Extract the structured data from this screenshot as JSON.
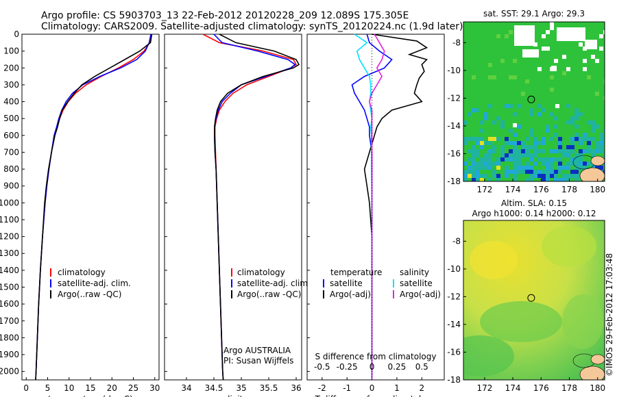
{
  "header": {
    "line1": "Argo profile: CS 5903703_13 22-Feb-2012 20120228_209 12.089S 175.305E",
    "line2": "Climatology: CARS2009. Satellite-adjusted climatology: synTS_20120224.nc (1.9d later)"
  },
  "colors": {
    "climatology": "#ff0000",
    "satellite": "#0000ff",
    "argo": "#000000",
    "salinity_satellite": "#00e0ff",
    "salinity_argo": "#e020e0",
    "land": "#f5c89a"
  },
  "chart_data": [
    {
      "type": "line",
      "panel": "temperature",
      "xlabel": "temperature (deg C)",
      "ylabel": "",
      "xlim": [
        -1,
        31
      ],
      "ylim": [
        2050,
        0
      ],
      "xticks": [
        0,
        5,
        10,
        15,
        20,
        25,
        30
      ],
      "yticks": [
        0,
        100,
        200,
        300,
        400,
        500,
        600,
        700,
        800,
        900,
        1000,
        1100,
        1200,
        1300,
        1400,
        1500,
        1600,
        1700,
        1800,
        1900,
        2000
      ],
      "legend": [
        "climatology",
        "satellite-adj. clim.",
        "Argo(..raw -QC)"
      ],
      "series": [
        {
          "name": "climatology",
          "color": "#ff0000",
          "depth": [
            0,
            50,
            100,
            150,
            200,
            250,
            300,
            350,
            400,
            450,
            500,
            550,
            600,
            700,
            800,
            900,
            1000,
            1200,
            1400,
            1600,
            1800,
            2000,
            2050
          ],
          "values": [
            29.3,
            28.8,
            27.5,
            25.0,
            21.5,
            17.5,
            14.0,
            11.5,
            9.8,
            8.6,
            7.8,
            7.2,
            6.6,
            5.9,
            5.3,
            4.8,
            4.4,
            3.8,
            3.3,
            2.9,
            2.6,
            2.3,
            2.2
          ]
        },
        {
          "name": "satellite-adj. clim.",
          "color": "#0000ff",
          "depth": [
            0,
            50,
            100,
            150,
            200,
            250,
            300,
            350,
            400,
            450,
            500,
            550,
            600,
            700,
            800,
            900,
            1000,
            1200,
            1400,
            1600,
            1800,
            2000,
            2050
          ],
          "values": [
            29.1,
            28.7,
            27.8,
            25.8,
            22.0,
            17.2,
            13.2,
            10.8,
            9.3,
            8.3,
            7.6,
            7.1,
            6.5,
            5.9,
            5.3,
            4.8,
            4.4,
            3.8,
            3.3,
            2.9,
            2.6,
            2.3,
            2.2
          ]
        },
        {
          "name": "Argo(..raw -QC)",
          "color": "#000000",
          "depth": [
            0,
            50,
            100,
            150,
            200,
            250,
            300,
            350,
            400,
            450,
            500,
            550,
            600,
            700,
            800,
            900,
            1000,
            1200,
            1400,
            1600,
            1800,
            2000,
            2050
          ],
          "values": [
            29.3,
            29.0,
            26.5,
            23.0,
            19.5,
            16.0,
            13.0,
            11.2,
            9.7,
            8.4,
            7.8,
            7.3,
            6.7,
            5.9,
            5.2,
            4.7,
            4.3,
            3.8,
            3.3,
            2.9,
            2.6,
            2.3,
            2.2
          ]
        }
      ]
    },
    {
      "type": "line",
      "panel": "salinity",
      "xlabel": "salinity",
      "ylabel": "",
      "xlim": [
        33.6,
        36.1
      ],
      "ylim": [
        2050,
        0
      ],
      "xticks": [
        34,
        34.5,
        35,
        35.5,
        36
      ],
      "legend": [
        "climatology",
        "satellite-adj. clim.",
        "Argo(..raw -QC)"
      ],
      "annotation": [
        "Argo AUSTRALIA",
        "PI: Susan Wijffels"
      ],
      "series": [
        {
          "name": "climatology",
          "color": "#ff0000",
          "depth": [
            0,
            50,
            100,
            150,
            180,
            200,
            250,
            300,
            350,
            400,
            450,
            500,
            550,
            600,
            700,
            800,
            1000,
            1200,
            1400,
            1600,
            1800,
            2000,
            2050
          ],
          "values": [
            34.3,
            34.6,
            35.4,
            35.95,
            36.0,
            35.9,
            35.5,
            35.1,
            34.85,
            34.7,
            34.6,
            34.55,
            34.52,
            34.52,
            34.53,
            34.54,
            34.56,
            34.58,
            34.6,
            34.62,
            34.64,
            34.66,
            34.67
          ]
        },
        {
          "name": "satellite-adj. clim.",
          "color": "#0000ff",
          "depth": [
            0,
            50,
            100,
            150,
            180,
            200,
            250,
            300,
            350,
            400,
            450,
            500,
            550,
            600,
            700,
            800,
            1000,
            1200,
            1400,
            1600,
            1800,
            2000,
            2050
          ],
          "values": [
            34.5,
            34.65,
            35.3,
            35.85,
            35.98,
            35.9,
            35.45,
            35.0,
            34.8,
            34.65,
            34.58,
            34.54,
            34.51,
            34.51,
            34.52,
            34.54,
            34.56,
            34.58,
            34.6,
            34.62,
            34.64,
            34.66,
            34.67
          ]
        },
        {
          "name": "Argo(..raw -QC)",
          "color": "#000000",
          "depth": [
            0,
            50,
            100,
            150,
            180,
            200,
            250,
            300,
            350,
            400,
            450,
            500,
            550,
            600,
            700,
            800,
            1000,
            1200,
            1400,
            1600,
            1800,
            2000,
            2050
          ],
          "values": [
            34.6,
            34.9,
            35.6,
            36.0,
            36.05,
            35.95,
            35.4,
            35.0,
            34.75,
            34.62,
            34.56,
            34.53,
            34.51,
            34.51,
            34.52,
            34.54,
            34.56,
            34.58,
            34.6,
            34.62,
            34.64,
            34.66,
            34.67
          ]
        }
      ]
    },
    {
      "type": "line",
      "panel": "difference",
      "xlabel": "T difference from climatology",
      "xlabel_top": "S difference from climatology",
      "ylabel": "",
      "xlim": [
        -2.6,
        2.9
      ],
      "ylim": [
        2050,
        0
      ],
      "xticks": [
        -2,
        -1,
        0,
        1,
        2
      ],
      "xticks_s": [
        -0.5,
        -0.25,
        0,
        0.25,
        0.5
      ],
      "legend_headers": [
        "temperature",
        "salinity"
      ],
      "legend": [
        "satellite",
        "Argo(-adj)",
        "satellite",
        "Argo(-adj)"
      ],
      "series": [
        {
          "name": "satellite",
          "group": "temperature",
          "color": "#0000ff",
          "depth": [
            0,
            50,
            100,
            150,
            200,
            250,
            300,
            350,
            400,
            450,
            500,
            550,
            600,
            700,
            800,
            900,
            1000,
            1200,
            1400,
            1600,
            1800,
            2000,
            2050
          ],
          "values": [
            -0.2,
            -0.1,
            0.3,
            0.8,
            0.5,
            -0.3,
            -0.8,
            -0.7,
            -0.5,
            -0.3,
            -0.2,
            -0.1,
            -0.1,
            0.0,
            0.0,
            0.0,
            0.0,
            0.0,
            0.0,
            0.0,
            0.0,
            0.0,
            0.0
          ]
        },
        {
          "name": "Argo(-adj)",
          "group": "temperature",
          "color": "#000000",
          "depth": [
            0,
            40,
            80,
            120,
            150,
            180,
            220,
            260,
            300,
            350,
            400,
            450,
            500,
            550,
            600,
            700,
            800,
            900,
            1000,
            1200,
            1400,
            1600,
            1800,
            2000,
            2050
          ],
          "values": [
            0.0,
            1.8,
            2.2,
            1.5,
            2.2,
            2.0,
            2.1,
            1.9,
            1.8,
            1.7,
            2.0,
            0.8,
            0.4,
            0.2,
            0.1,
            -0.1,
            -0.3,
            -0.2,
            -0.1,
            0.0,
            0.0,
            0.0,
            0.0,
            0.0,
            0.0
          ]
        },
        {
          "name": "satellite",
          "group": "salinity",
          "color": "#00e0ff",
          "depth": [
            0,
            50,
            100,
            150,
            200,
            250,
            300,
            350,
            400,
            450,
            500,
            550,
            600,
            700,
            800,
            1000,
            1200,
            1400,
            1600,
            1800,
            2000,
            2050
          ],
          "values": [
            -0.7,
            -0.2,
            -0.6,
            -0.5,
            -0.3,
            -0.1,
            -0.05,
            -0.05,
            -0.1,
            -0.05,
            0.0,
            -0.05,
            -0.02,
            -0.02,
            -0.02,
            0.0,
            0.0,
            0.0,
            0.0,
            0.0,
            0.0,
            0.0
          ]
        },
        {
          "name": "Argo(-adj)",
          "group": "salinity",
          "color": "#e020e0",
          "depth": [
            0,
            50,
            100,
            150,
            200,
            250,
            300,
            350,
            400,
            450,
            500,
            600,
            700,
            800,
            1000,
            1200,
            1400,
            1600,
            1800,
            2000,
            2050
          ],
          "values": [
            0.1,
            0.3,
            0.5,
            0.4,
            0.2,
            0.4,
            0.2,
            0.0,
            -0.1,
            0.0,
            0.0,
            0.0,
            0.0,
            0.0,
            0.0,
            0.0,
            0.0,
            0.0,
            0.0,
            0.0,
            0.0
          ]
        }
      ]
    },
    {
      "type": "heatmap",
      "panel": "sst-map",
      "title": "sat. SST: 29.1  Argo: 29.3",
      "xticks": [
        172,
        174,
        176,
        178,
        180
      ],
      "yticks": [
        -8,
        -10,
        -12,
        -14,
        -16,
        -18
      ],
      "xlim": [
        170.5,
        180.5
      ],
      "ylim": [
        -18,
        -6.5
      ],
      "marker": {
        "lon": 175.3,
        "lat": -12.09
      }
    },
    {
      "type": "heatmap",
      "panel": "sla-map",
      "title": "Altim. SLA: 0.15",
      "subtitle": "Argo h1000: 0.14 h2000: 0.12",
      "xticks": [
        172,
        174,
        176,
        178,
        180
      ],
      "yticks": [
        -8,
        -10,
        -12,
        -14,
        -16,
        -18
      ],
      "xlim": [
        170.5,
        180.5
      ],
      "ylim": [
        -18,
        -6.5
      ],
      "marker": {
        "lon": 175.3,
        "lat": -12.09
      }
    }
  ],
  "footer": {
    "credit": "©IMOS 29-Feb-2012 17:03:48"
  }
}
